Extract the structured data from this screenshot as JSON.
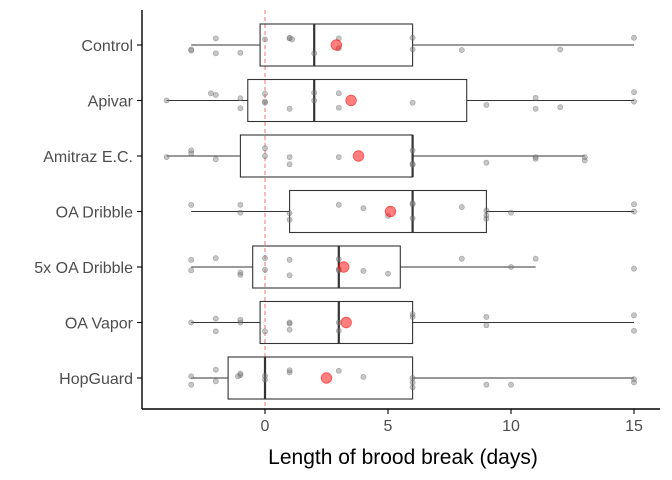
{
  "chart_data": {
    "type": "boxplot",
    "xlabel": "Length of brood break (days)",
    "ylabel": "",
    "xlim": [
      -4.6,
      16.0
    ],
    "xticks": [
      0,
      5,
      10,
      15
    ],
    "xtick_labels": [
      "0",
      "5",
      "10",
      "15"
    ],
    "reference_line_x": 0,
    "grid": false,
    "colors": {
      "box_stroke": "#333333",
      "point": "#808080",
      "mean": "#ff0000",
      "reference_line": "#f08080",
      "axis": "#000000"
    },
    "categories": [
      "Control",
      "Apivar",
      "Amitraz E.C.",
      "OA Dribble",
      "5x OA Dribble",
      "OA Vapor",
      "HopGuard"
    ],
    "boxes": [
      {
        "name": "Control",
        "whisker_low": -3,
        "q1": -0.2,
        "median": 2,
        "q3": 6,
        "whisker_high": 15,
        "mean": 2.9,
        "points": [
          [
            -3,
            0.08
          ],
          [
            -3,
            0.1
          ],
          [
            -2,
            -0.12
          ],
          [
            -2,
            0.15
          ],
          [
            -1,
            0.14
          ],
          [
            0,
            -0.1
          ],
          [
            1,
            -0.12
          ],
          [
            1,
            -0.13
          ],
          [
            1.1,
            -0.1
          ],
          [
            2,
            0.15
          ],
          [
            3,
            -0.12
          ],
          [
            3,
            0.06
          ],
          [
            6,
            0.08
          ],
          [
            6,
            -0.13
          ],
          [
            8,
            0.09
          ],
          [
            12,
            0.08
          ],
          [
            15,
            -0.13
          ]
        ]
      },
      {
        "name": "Apivar",
        "whisker_low": -4,
        "q1": -0.7,
        "median": 2,
        "q3": 8.2,
        "whisker_high": 15,
        "mean": 3.5,
        "points": [
          [
            -4,
            0.0
          ],
          [
            -2.2,
            -0.13
          ],
          [
            -2,
            -0.1
          ],
          [
            -1,
            0.14
          ],
          [
            -1,
            -0.04
          ],
          [
            0,
            0.02
          ],
          [
            0,
            0.04
          ],
          [
            0,
            -0.12
          ],
          [
            1,
            0.15
          ],
          [
            2,
            -0.14
          ],
          [
            2,
            0.0
          ],
          [
            3,
            0.13
          ],
          [
            3,
            -0.13
          ],
          [
            6,
            0.04
          ],
          [
            9,
            0.08
          ],
          [
            11,
            -0.05
          ],
          [
            11,
            0.15
          ],
          [
            12,
            0.12
          ],
          [
            15,
            0.02
          ],
          [
            15,
            -0.15
          ]
        ]
      },
      {
        "name": "Amitraz E.C.",
        "whisker_low": -4,
        "q1": -1,
        "median": 6,
        "q3": 6,
        "whisker_high": 13,
        "mean": 3.8,
        "points": [
          [
            -4,
            0.02
          ],
          [
            -3,
            -0.05
          ],
          [
            -3,
            -0.1
          ],
          [
            -2,
            0.06
          ],
          [
            0,
            0.0
          ],
          [
            0,
            -0.14
          ],
          [
            1,
            0.15
          ],
          [
            1,
            0.02
          ],
          [
            3,
            0.02
          ],
          [
            6,
            0.14
          ],
          [
            6,
            0.16
          ],
          [
            6,
            -0.1
          ],
          [
            9,
            0.12
          ],
          [
            11,
            0.02
          ],
          [
            11,
            0.05
          ],
          [
            13,
            0.08
          ],
          [
            13,
            0.02
          ]
        ]
      },
      {
        "name": "OA Dribble",
        "whisker_low": -3,
        "q1": 1,
        "median": 6,
        "q3": 9,
        "whisker_high": 15,
        "mean": 5.1,
        "points": [
          [
            -3,
            -0.12
          ],
          [
            -1,
            0.02
          ],
          [
            -1,
            -0.12
          ],
          [
            1,
            0.15
          ],
          [
            1,
            0.03
          ],
          [
            3,
            -0.12
          ],
          [
            4,
            -0.06
          ],
          [
            5,
            0.08
          ],
          [
            6,
            0.12
          ],
          [
            6,
            -0.13
          ],
          [
            6,
            -0.15
          ],
          [
            8,
            -0.08
          ],
          [
            9,
            0.13
          ],
          [
            9,
            0.07
          ],
          [
            9,
            -0.02
          ],
          [
            10,
            0.02
          ],
          [
            15,
            0.0
          ],
          [
            15,
            -0.13
          ]
        ]
      },
      {
        "name": "5x OA Dribble",
        "whisker_low": -3,
        "q1": -0.5,
        "median": 3,
        "q3": 5.5,
        "whisker_high": 11,
        "mean": 3.2,
        "points": [
          [
            -3,
            0.06
          ],
          [
            -3,
            -0.13
          ],
          [
            -2,
            -0.16
          ],
          [
            -1,
            0.14
          ],
          [
            -1,
            0.1
          ],
          [
            0,
            0.05
          ],
          [
            0,
            -0.16
          ],
          [
            1,
            0.15
          ],
          [
            1,
            -0.13
          ],
          [
            3,
            0.04
          ],
          [
            3,
            0.06
          ],
          [
            3,
            -0.14
          ],
          [
            4,
            0.07
          ],
          [
            5,
            0.12
          ],
          [
            8,
            -0.15
          ],
          [
            10,
            0.0
          ],
          [
            11,
            -0.15
          ],
          [
            15,
            0.03
          ]
        ]
      },
      {
        "name": "OA Vapor",
        "whisker_low": -3,
        "q1": -0.2,
        "median": 3,
        "q3": 6,
        "whisker_high": 15,
        "mean": 3.3,
        "points": [
          [
            -3,
            0.0
          ],
          [
            -2,
            0.16
          ],
          [
            -2,
            -0.07
          ],
          [
            -1,
            0.0
          ],
          [
            -1,
            -0.05
          ],
          [
            0,
            0.16
          ],
          [
            1,
            0.13
          ],
          [
            1,
            0.02
          ],
          [
            1,
            0.0
          ],
          [
            3,
            0.15
          ],
          [
            3,
            0.0
          ],
          [
            6,
            -0.1
          ],
          [
            6,
            -0.15
          ],
          [
            9,
            0.05
          ],
          [
            9,
            -0.1
          ],
          [
            15,
            0.15
          ],
          [
            15,
            -0.13
          ]
        ]
      },
      {
        "name": "HopGuard",
        "whisker_low": -3,
        "q1": -1.5,
        "median": 0,
        "q3": 6,
        "whisker_high": 15,
        "mean": 2.5,
        "points": [
          [
            -3,
            0.12
          ],
          [
            -3,
            -0.03
          ],
          [
            -2,
            0.06
          ],
          [
            -2,
            -0.15
          ],
          [
            -1,
            -0.05
          ],
          [
            -1,
            -0.08
          ],
          [
            -1.1,
            -0.03
          ],
          [
            0,
            0.03
          ],
          [
            0,
            -0.04
          ],
          [
            1,
            -0.1
          ],
          [
            1,
            -0.14
          ],
          [
            3,
            -0.13
          ],
          [
            4,
            -0.02
          ],
          [
            6,
            0.17
          ],
          [
            6,
            0.08
          ],
          [
            6,
            0.0
          ],
          [
            9,
            0.12
          ],
          [
            10,
            0.12
          ],
          [
            15,
            0.08
          ],
          [
            15,
            0.02
          ]
        ]
      }
    ]
  }
}
